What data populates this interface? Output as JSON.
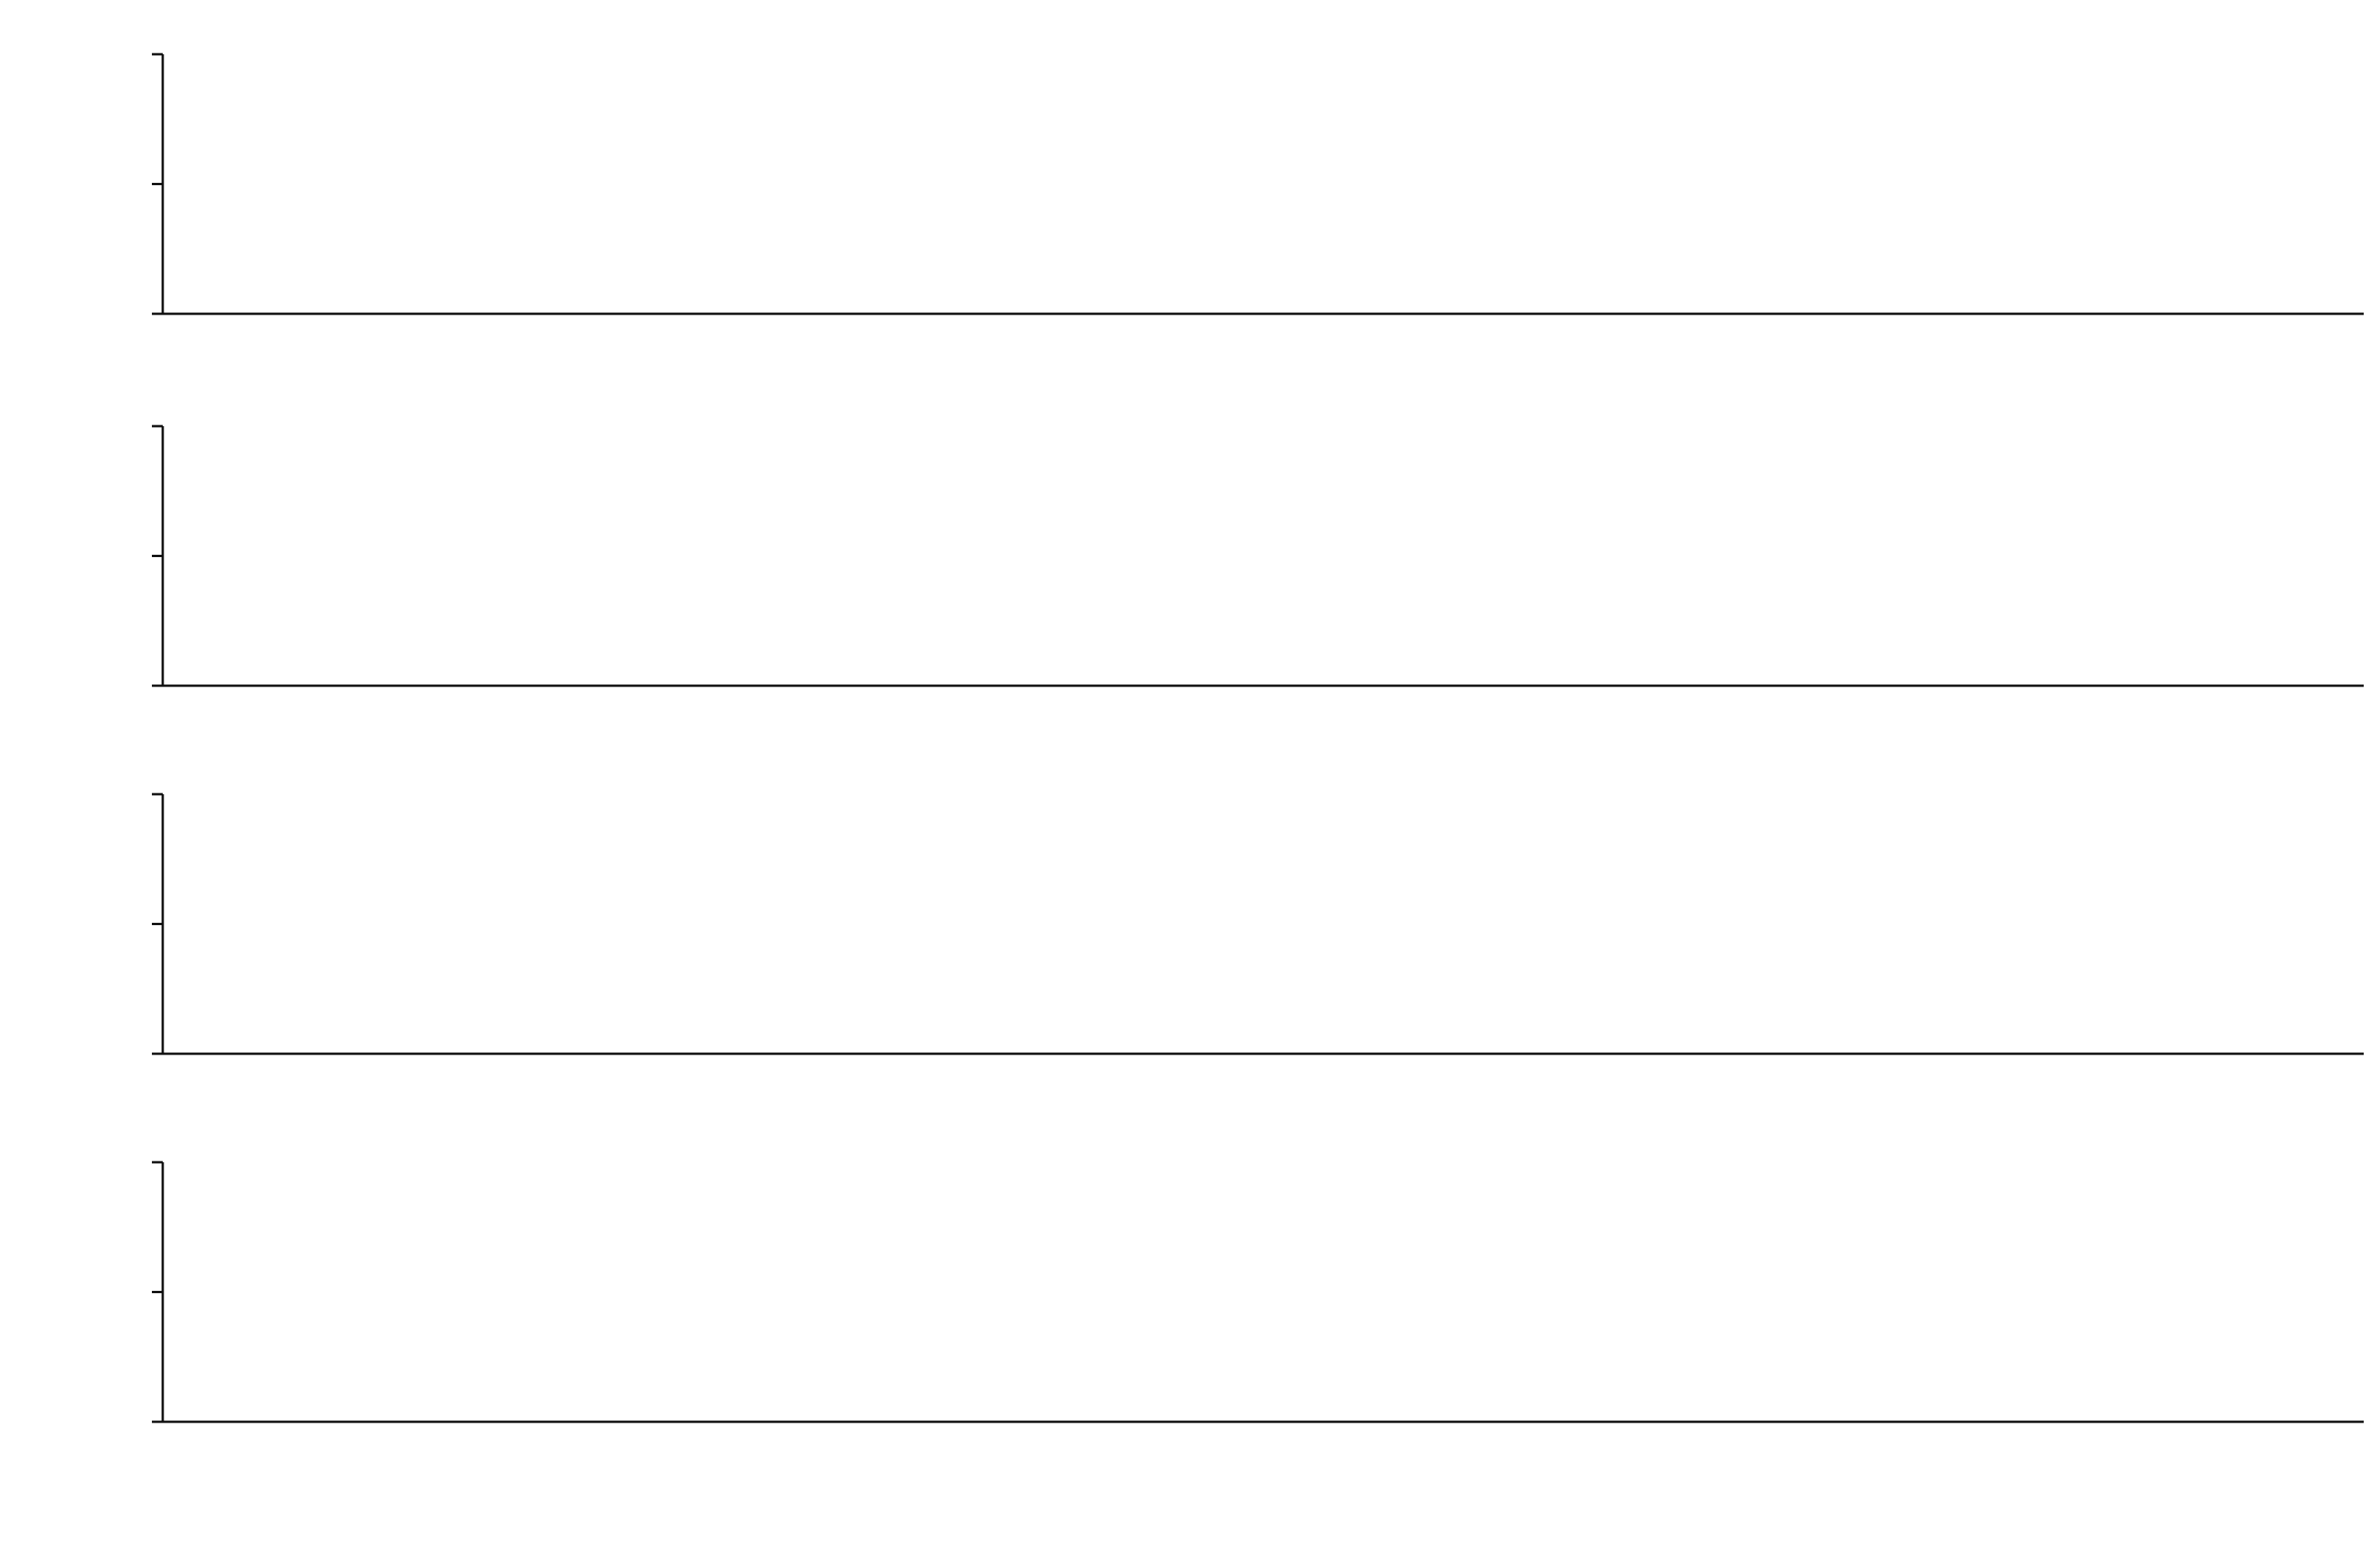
{
  "chart_data": {
    "type": "line",
    "xlabel": "",
    "ylabel": "",
    "x_ticks": [],
    "xlim": [
      0,
      1
    ],
    "ylim": [
      0,
      100
    ],
    "y_tick_labels": {
      "top": "",
      "mid": "",
      "bottom": ""
    },
    "panels": [
      {
        "letter": "",
        "scale": "",
        "peaks": [],
        "baseline": 0,
        "noise": 0,
        "labels": []
      },
      {
        "letter": "",
        "scale": "",
        "peaks": [],
        "baseline": 0,
        "noise": 0,
        "labels": []
      },
      {
        "letter": "",
        "scale": "",
        "peaks": [],
        "baseline": 0,
        "noise": 0,
        "labels": []
      },
      {
        "letter": "",
        "scale": "",
        "peaks": [],
        "baseline": 0,
        "noise": 0,
        "labels": []
      }
    ]
  },
  "colors": {
    "ink": "#111111",
    "background": "#ffffff"
  }
}
